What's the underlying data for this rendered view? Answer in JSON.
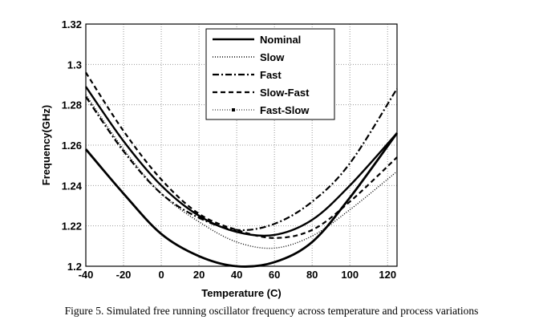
{
  "chart_data": {
    "type": "line",
    "xlabel": "Temperature (C)",
    "ylabel": "Frequency(GHz)",
    "xlim": [
      -40,
      125
    ],
    "ylim": [
      1.2,
      1.32
    ],
    "xticks": [
      "-40",
      "-20",
      "0",
      "20",
      "40",
      "60",
      "80",
      "100",
      "120"
    ],
    "yticks": [
      "1.2",
      "1.22",
      "1.24",
      "1.26",
      "1.28",
      "1.3",
      "1.32"
    ],
    "grid": true,
    "legend_position": "top-center",
    "x": [
      -40,
      -20,
      0,
      20,
      40,
      60,
      80,
      100,
      125
    ],
    "series": [
      {
        "name": "Nominal",
        "style": "solid",
        "values": [
          1.289,
          1.262,
          1.24,
          1.225,
          1.217,
          1.2155,
          1.223,
          1.24,
          1.266
        ]
      },
      {
        "name": "Slow",
        "style": "dotted",
        "values": [
          1.285,
          1.258,
          1.236,
          1.222,
          1.212,
          1.209,
          1.215,
          1.228,
          1.247
        ]
      },
      {
        "name": "Fast",
        "style": "dashdot",
        "values": [
          1.284,
          1.257,
          1.236,
          1.224,
          1.218,
          1.221,
          1.232,
          1.251,
          1.288
        ]
      },
      {
        "name": "Slow-Fast",
        "style": "dashed",
        "values": [
          1.296,
          1.267,
          1.243,
          1.226,
          1.218,
          1.214,
          1.218,
          1.232,
          1.254
        ]
      },
      {
        "name": "Fast-Slow",
        "style": "dot-marker",
        "values": [
          1.258,
          1.236,
          1.216,
          1.205,
          1.2,
          1.202,
          1.212,
          1.234,
          1.266
        ]
      }
    ]
  },
  "caption": "Figure 5. Simulated free running oscillator frequency across temperature and  process variations"
}
